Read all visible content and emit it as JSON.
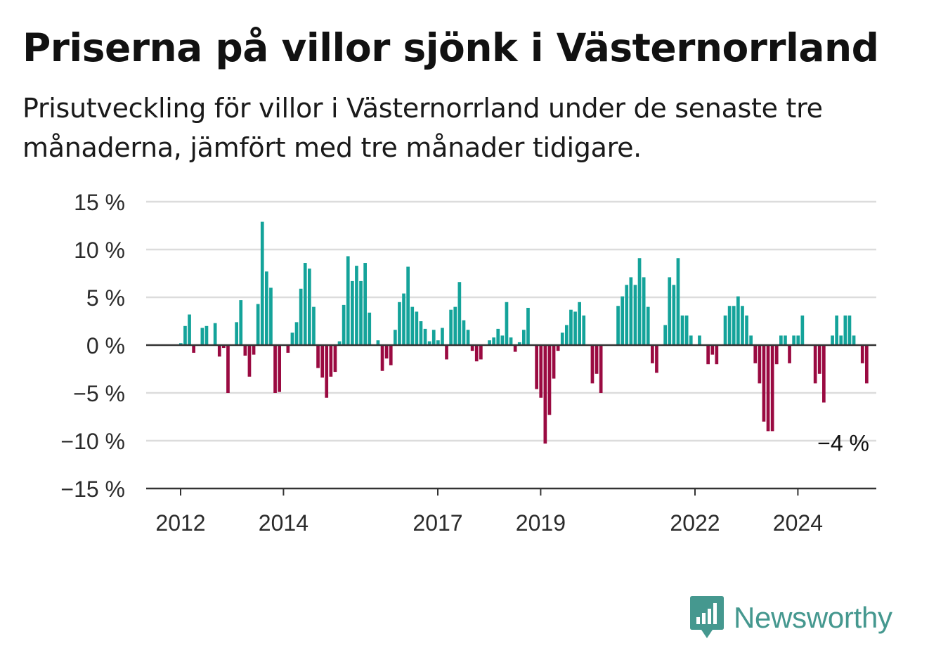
{
  "title": "Priserna på villor sjönk i Västernorrland",
  "subtitle": "Prisutveckling för villor i Västernorrland under de senaste tre månaderna, jämfört med tre månader tidigare.",
  "brand": {
    "name": "Newsworthy",
    "icon": "newsworthy-logo-icon"
  },
  "colors": {
    "positive": "#14a39a",
    "negative": "#9a0a41",
    "grid": "#dcdcdc",
    "axis": "#333333",
    "brand": "#45988f"
  },
  "chart_data": {
    "type": "bar",
    "title": "Priserna på villor sjönk i Västernorrland",
    "xlabel": "",
    "ylabel": "",
    "ylim": [
      -15,
      15
    ],
    "yticks": [
      15,
      10,
      5,
      0,
      -5,
      -10,
      -15
    ],
    "ytick_labels": [
      "15 %",
      "10 %",
      "5 %",
      "0 %",
      "−5 %",
      "−10 %",
      "−15 %"
    ],
    "xtick_labels": [
      {
        "label": "2012",
        "month": "2012-01"
      },
      {
        "label": "2014",
        "month": "2014-01"
      },
      {
        "label": "2017",
        "month": "2017-01"
      },
      {
        "label": "2019",
        "month": "2019-01"
      },
      {
        "label": "2022",
        "month": "2022-01"
      },
      {
        "label": "2024",
        "month": "2024-01"
      }
    ],
    "grid": true,
    "start_month": "2012-01",
    "values": [
      0.2,
      2.0,
      3.2,
      -0.8,
      0,
      1.8,
      2.0,
      0,
      2.3,
      -1.2,
      -0.3,
      -5.0,
      0,
      2.4,
      4.7,
      -1.1,
      -3.3,
      -1.0,
      4.3,
      12.9,
      7.7,
      6.0,
      -5.0,
      -4.9,
      0,
      -0.8,
      1.3,
      2.4,
      5.9,
      8.6,
      8.0,
      4.0,
      -2.4,
      -3.4,
      -5.5,
      -3.3,
      -2.8,
      0.4,
      4.2,
      9.3,
      6.7,
      8.3,
      6.7,
      8.6,
      3.4,
      0,
      0.5,
      -2.7,
      -1.4,
      -2.1,
      1.6,
      4.5,
      5.4,
      8.2,
      4.0,
      3.5,
      2.5,
      1.7,
      0.4,
      1.6,
      0.5,
      1.8,
      -1.5,
      3.7,
      4.0,
      6.6,
      2.6,
      1.6,
      -0.6,
      -1.7,
      -1.5,
      0,
      0.5,
      0.8,
      1.7,
      1.0,
      4.5,
      0.8,
      -0.7,
      0.3,
      1.6,
      3.9,
      0,
      -4.6,
      -5.5,
      -10.3,
      -7.3,
      -3.5,
      -0.6,
      1.3,
      2.1,
      3.7,
      3.5,
      4.5,
      3.1,
      0,
      -4.0,
      -3.0,
      -5.0,
      0,
      0,
      0,
      4.1,
      5.1,
      6.3,
      7.1,
      6.3,
      9.1,
      7.1,
      4.0,
      -1.9,
      -2.9,
      0,
      2.1,
      7.1,
      6.3,
      9.1,
      3.1,
      3.1,
      1.0,
      0,
      1.0,
      0,
      -2.0,
      -1.0,
      -2.0,
      0,
      3.1,
      4.1,
      4.1,
      5.1,
      4.1,
      3.1,
      1.0,
      -1.9,
      -4.0,
      -8.0,
      -9.0,
      -9.0,
      -2.0,
      1.0,
      1.0,
      -1.9,
      1.0,
      1.0,
      3.1,
      0,
      0,
      -4.0,
      -3.0,
      -6.0,
      0,
      1.0,
      3.1,
      1.0,
      3.1,
      3.1,
      1.0,
      0,
      -1.9,
      -4.0
    ],
    "annotation": {
      "text": "−4 %",
      "value": -4
    }
  }
}
